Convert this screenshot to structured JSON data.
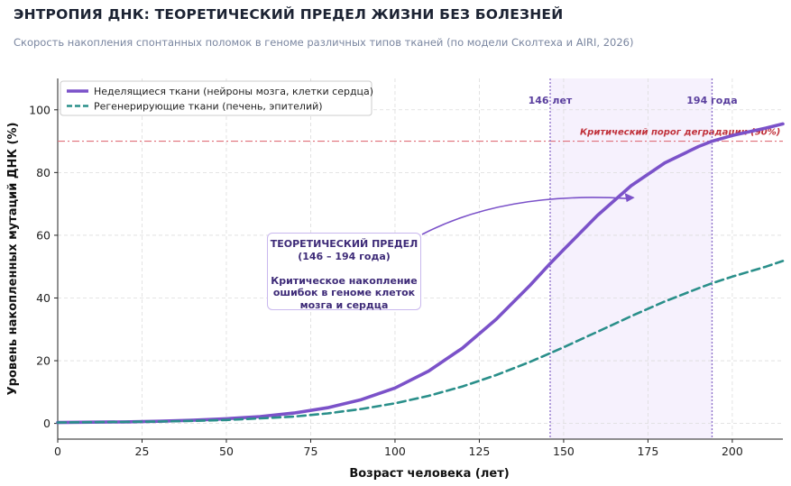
{
  "title": "ЭНТРОПИЯ ДНК: ТЕОРЕТИЧЕСКИЙ ПРЕДЕЛ ЖИЗНИ БЕЗ БОЛЕЗНЕЙ",
  "subtitle": "Скорость накопления спонтанных поломок в геноме различных типов тканей (по модели Сколтеха и AIRI, 2026)",
  "annotation_box": {
    "line1": "ТЕОРЕТИЧЕСКИЙ ПРЕДЕЛ",
    "line2": "(146 – 194 года)",
    "line3": "Критическое накопление",
    "line4": "ошибок в геноме клеток",
    "line5": "мозга и сердца"
  },
  "chart_data": {
    "type": "line",
    "title": "ЭНТРОПИЯ ДНК: ТЕОРЕТИЧЕСКИЙ ПРЕДЕЛ ЖИЗНИ БЕЗ БОЛЕЗНЕЙ",
    "xlabel": "Возраст человека (лет)",
    "ylabel": "Уровень накопленных мутаций ДНК (%)",
    "xlim": [
      0,
      215
    ],
    "ylim": [
      -5,
      110
    ],
    "xticks": [
      0,
      25,
      50,
      75,
      100,
      125,
      150,
      175,
      200
    ],
    "yticks": [
      0,
      20,
      40,
      60,
      80,
      100
    ],
    "grid": true,
    "legend_position": "top-left",
    "x": [
      0,
      10,
      20,
      30,
      40,
      50,
      60,
      70,
      80,
      90,
      100,
      110,
      120,
      130,
      140,
      146,
      150,
      160,
      170,
      180,
      190,
      194,
      200,
      210,
      215
    ],
    "series": [
      {
        "name": "Неделящиеся ткани (нейроны мозга, клетки сердца)",
        "color": "#7b52c9",
        "style": "solid",
        "values": [
          0.3,
          0.4,
          0.5,
          0.7,
          1.0,
          1.5,
          2.2,
          3.3,
          5.0,
          7.6,
          11.3,
          16.7,
          24.0,
          33.2,
          44.0,
          51.0,
          55.4,
          66.3,
          75.8,
          83.1,
          88.3,
          90.0,
          91.8,
          94.2,
          95.5
        ]
      },
      {
        "name": "Регенерирующие ткани (печень, эпителий)",
        "color": "#2a8f8a",
        "style": "dashed",
        "values": [
          0.3,
          0.4,
          0.5,
          0.6,
          0.8,
          1.1,
          1.6,
          2.2,
          3.2,
          4.6,
          6.4,
          8.8,
          11.8,
          15.4,
          19.6,
          22.4,
          24.3,
          29.2,
          34.2,
          38.9,
          43.1,
          44.7,
          46.8,
          50.0,
          51.8
        ]
      }
    ],
    "threshold": {
      "value": 90,
      "label": "Критический порог деградации (90%)",
      "color": "#e0707a"
    },
    "vlines": [
      {
        "x": 146,
        "label": "146 лет"
      },
      {
        "x": 194,
        "label": "194 года"
      }
    ],
    "shaded_region": [
      146,
      194
    ],
    "arrow_target": {
      "x": 170,
      "y": 72
    }
  }
}
